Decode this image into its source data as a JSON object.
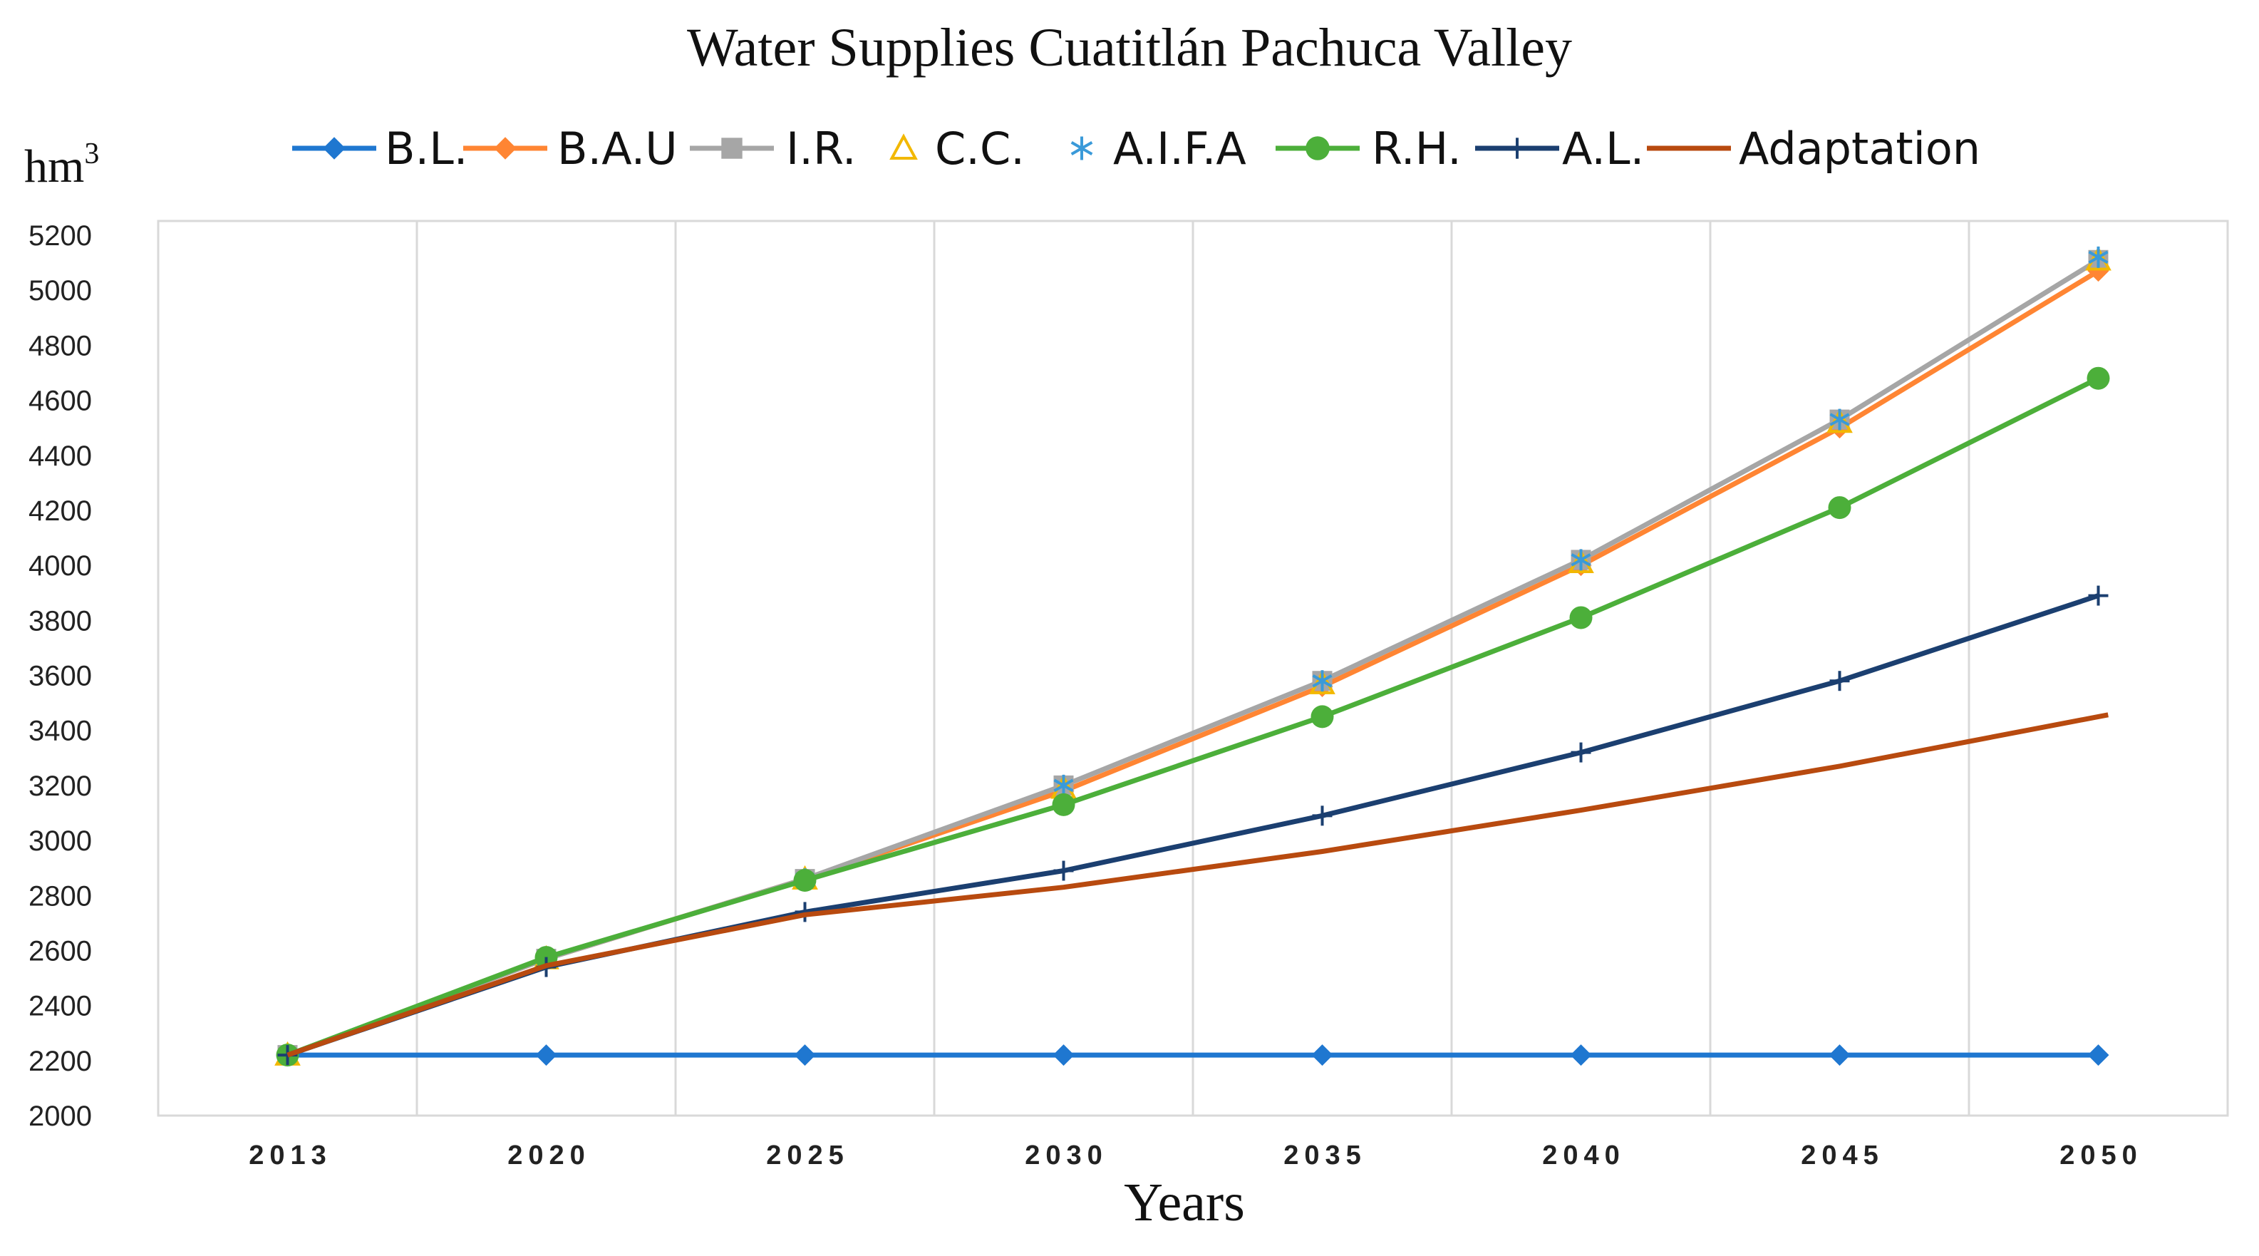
{
  "chart_data": {
    "type": "line",
    "title": "Water Supplies Cuatitlán Pachuca Valley",
    "xlabel": "Years",
    "ylabel": "hm",
    "ylabel_superscript": "3",
    "ylim": [
      2000,
      5200
    ],
    "ytick_step": 200,
    "yticks": [
      "2000",
      "2200",
      "2400",
      "2600",
      "2800",
      "3000",
      "3200",
      "3400",
      "3600",
      "3800",
      "4000",
      "4200",
      "4400",
      "4600",
      "4800",
      "5000",
      "5200"
    ],
    "categories": [
      "2013",
      "2020",
      "2025",
      "2030",
      "2035",
      "2040",
      "2045",
      "2050"
    ],
    "grid": "vertical",
    "legend_position": "top",
    "series": [
      {
        "name": "B.L.",
        "color": "#1f77d0",
        "marker": "diamond",
        "line": true,
        "values": [
          2220,
          2220,
          2220,
          2220,
          2220,
          2220,
          2220,
          2220
        ]
      },
      {
        "name": "B.A.U",
        "color": "#ff8533",
        "marker": "diamond",
        "line": true,
        "values": [
          2220,
          2570,
          2860,
          3180,
          3560,
          4000,
          4500,
          5070
        ]
      },
      {
        "name": "I.R.",
        "color": "#a6a6a6",
        "marker": "square",
        "line": true,
        "values": [
          2220,
          2570,
          2860,
          3200,
          3580,
          4020,
          4530,
          5110
        ]
      },
      {
        "name": "C.C.",
        "color": "#f2b800",
        "marker": "triangle",
        "line": false,
        "values": [
          2220,
          2570,
          2860,
          3190,
          3570,
          4010,
          4520,
          5110
        ]
      },
      {
        "name": "A.I.F.A",
        "color": "#3a9ad9",
        "marker": "asterisk",
        "line": false,
        "values": [
          2220,
          2570,
          2860,
          3200,
          3580,
          4020,
          4530,
          5120
        ]
      },
      {
        "name": "R.H.",
        "color": "#4caf3a",
        "marker": "circle",
        "line": true,
        "values": [
          2220,
          2575,
          2855,
          3130,
          3450,
          3810,
          4210,
          4680
        ]
      },
      {
        "name": "A.L.",
        "color": "#1b3f70",
        "marker": "plus",
        "line": true,
        "values": [
          2220,
          2540,
          2740,
          2890,
          3090,
          3320,
          3580,
          3890
        ]
      },
      {
        "name": "Adaptation",
        "color": "#b84a0f",
        "marker": "none",
        "line": true,
        "values": [
          2220,
          2545,
          2730,
          2830,
          2960,
          3110,
          3270,
          3450
        ]
      }
    ]
  }
}
